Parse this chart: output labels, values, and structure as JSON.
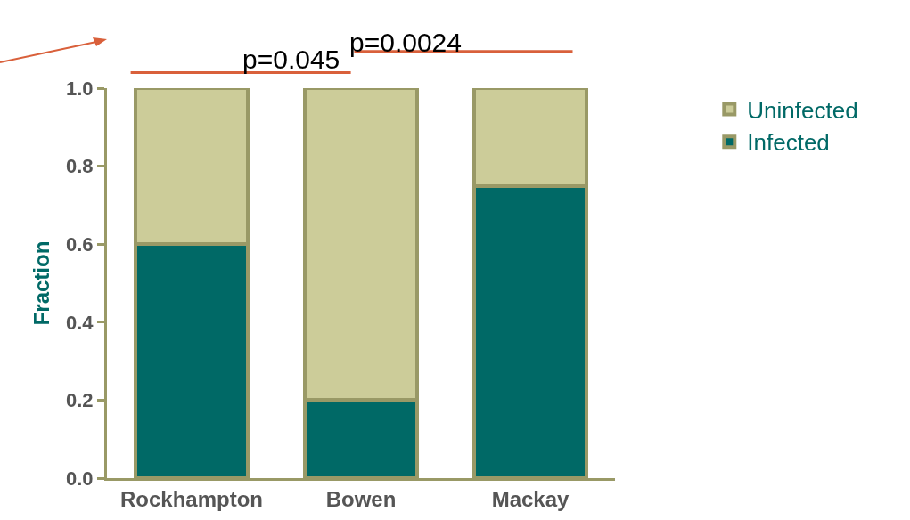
{
  "chart_data": {
    "type": "bar",
    "stacked": true,
    "ylabel": "Fraction",
    "categories": [
      "Rockhampton",
      "Bowen",
      "Mackay"
    ],
    "series": [
      {
        "name": "Infected",
        "color": "#006966",
        "values": [
          0.6,
          0.2,
          0.75
        ]
      },
      {
        "name": "Uninfected",
        "color": "#cccc99",
        "values": [
          0.4,
          0.8,
          0.25
        ]
      }
    ],
    "ylim": [
      0,
      1
    ],
    "yticks": [
      {
        "value": 0,
        "label": "0.0"
      },
      0.2,
      0.4,
      0.6,
      0.8,
      {
        "value": 1,
        "label": "1.0"
      }
    ],
    "grid": false,
    "legend": "top right",
    "annotations": [
      "p=0.045",
      "p=0.0024"
    ]
  }
}
